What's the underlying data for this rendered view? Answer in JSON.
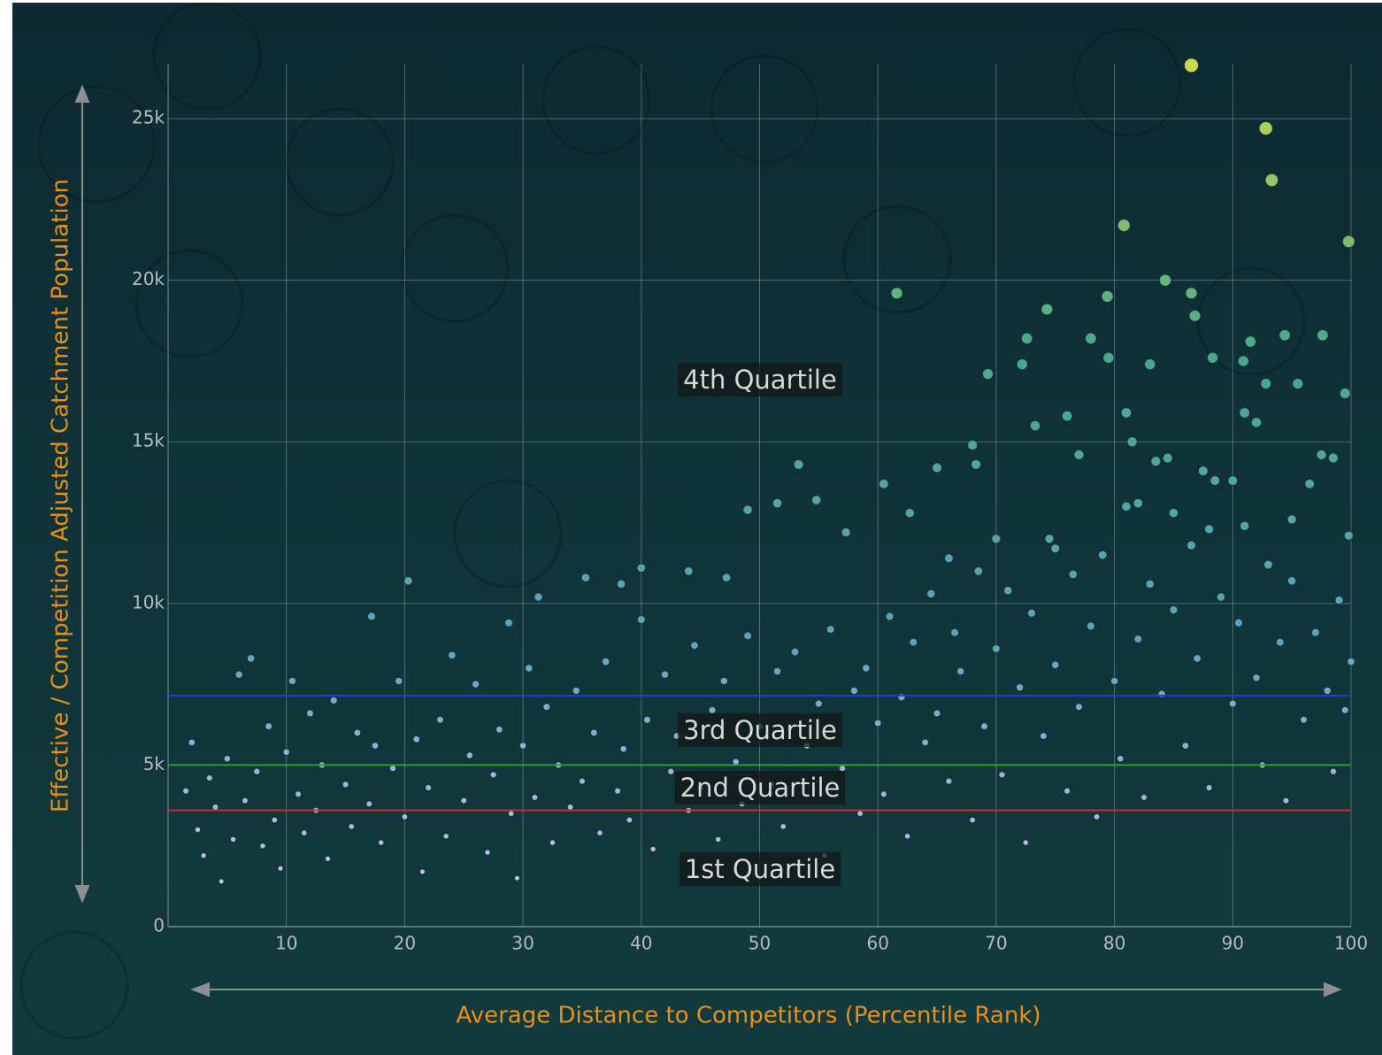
{
  "chart_data": {
    "type": "scatter",
    "x_label": "Average Distance to Competitors (Percentile Rank)",
    "y_label": "Effective / Competition Adjusted Catchment Population",
    "xlim": [
      0,
      100
    ],
    "ylim": [
      0,
      26700
    ],
    "xticks": [
      10,
      20,
      30,
      40,
      50,
      60,
      70,
      80,
      90,
      100
    ],
    "yticks": [
      0,
      {
        "value": 5000,
        "label": "5k"
      },
      {
        "value": 10000,
        "label": "10k"
      },
      {
        "value": 15000,
        "label": "15k"
      },
      {
        "value": 20000,
        "label": "20k"
      },
      {
        "value": 25000,
        "label": "25k"
      }
    ],
    "grid": true,
    "color_scale": [
      "#dccbf4",
      "#5ba4b9",
      "#46a98a",
      "#c8da48"
    ],
    "hlines": [
      {
        "value": 7150,
        "color": "#1f3fd0"
      },
      {
        "value": 5000,
        "color": "#2f9a2f"
      },
      {
        "value": 3600,
        "color": "#d02a2a"
      }
    ],
    "annotations": [
      "4th Quartile",
      "3rd Quartile",
      "2nd Quartile",
      "1st Quartile"
    ],
    "x": [
      86.5,
      92.8,
      93.3,
      80.8,
      99.8,
      61.6,
      84.3,
      86.5,
      86.8,
      74.3,
      79.4,
      72.6,
      78,
      91.5,
      94.4,
      97.6,
      69.3,
      72.2,
      79.5,
      83,
      88.3,
      90.9,
      92.8,
      95.5,
      99.5,
      76,
      81,
      91,
      92,
      73.3,
      53.3,
      65,
      68.3,
      49,
      51.5,
      54.8,
      60.5,
      62.7,
      47.2,
      40,
      35.3,
      31.3,
      20.3,
      17.2,
      28.8,
      44,
      38.3,
      66,
      57.3,
      70,
      75,
      82,
      85,
      88,
      95,
      99.8,
      1.5,
      2,
      2.5,
      3,
      3.5,
      4,
      4.5,
      5,
      5.5,
      6,
      6.5,
      7,
      7.5,
      8,
      8.5,
      9,
      9.5,
      10,
      10.5,
      11,
      11.5,
      12,
      12.5,
      13,
      13.5,
      14,
      15,
      15.5,
      16,
      17,
      17.5,
      18,
      19,
      19.5,
      20,
      21,
      21.5,
      22,
      23,
      23.5,
      24,
      25,
      25.5,
      26,
      27,
      27.5,
      28,
      29,
      29.5,
      30,
      30.5,
      31,
      32,
      32.5,
      33,
      34,
      34.5,
      35,
      36,
      36.5,
      37,
      38,
      38.5,
      39,
      40,
      40.5,
      41,
      42,
      42.5,
      43,
      44,
      44.5,
      45,
      46,
      46.5,
      47,
      48,
      48.5,
      49,
      50,
      51,
      51.5,
      52,
      53,
      54,
      55,
      55.5,
      56,
      57,
      58,
      58.5,
      59,
      60,
      60.5,
      61,
      62,
      62.5,
      63,
      64,
      64.5,
      65,
      66,
      66.5,
      67,
      68,
      68.5,
      69,
      70,
      70.5,
      71,
      72,
      72.5,
      73,
      74,
      74.5,
      75,
      76,
      76.5,
      77,
      78,
      78.5,
      79,
      80,
      80.5,
      81,
      82,
      82.5,
      83,
      84,
      84.5,
      85,
      86,
      86.5,
      87,
      88,
      88.5,
      89,
      90,
      90.5,
      91,
      92,
      92.5,
      93,
      94,
      94.5,
      95,
      96,
      96.5,
      97,
      98,
      98.5,
      99,
      99.5,
      100,
      68,
      77,
      81.5,
      83.5,
      87.5,
      90,
      97.5,
      98.5
    ],
    "values": [
      26650,
      24700,
      23100,
      21700,
      21200,
      19600,
      20000,
      19600,
      18900,
      19100,
      19500,
      18200,
      18200,
      18100,
      18300,
      18300,
      17100,
      17400,
      17600,
      17400,
      17600,
      17500,
      16800,
      16800,
      16500,
      15800,
      15900,
      15900,
      15600,
      15500,
      14300,
      14200,
      14300,
      12900,
      13100,
      13200,
      13700,
      12800,
      10800,
      11100,
      10800,
      10200,
      10700,
      9600,
      9400,
      11000,
      10600,
      11400,
      12200,
      12000,
      11700,
      13100,
      12800,
      12300,
      12600,
      12100,
      4200,
      5700,
      3000,
      2200,
      4600,
      3700,
      1400,
      5200,
      2700,
      7800,
      3900,
      8300,
      4800,
      2500,
      6200,
      3300,
      1800,
      5400,
      7600,
      4100,
      2900,
      6600,
      3600,
      5000,
      2100,
      7000,
      4400,
      3100,
      6000,
      3800,
      5600,
      2600,
      4900,
      7600,
      3400,
      5800,
      1700,
      4300,
      6400,
      2800,
      8400,
      3900,
      5300,
      7500,
      2300,
      4700,
      6100,
      3500,
      1500,
      5600,
      8000,
      4000,
      6800,
      2600,
      5000,
      3700,
      7300,
      4500,
      6000,
      2900,
      8200,
      4200,
      5500,
      3300,
      9500,
      6400,
      2400,
      7800,
      4800,
      5900,
      3600,
      8700,
      4300,
      6700,
      2700,
      7600,
      5100,
      3800,
      9000,
      6200,
      4400,
      7900,
      3100,
      8500,
      5600,
      6900,
      2200,
      9200,
      4900,
      7300,
      3500,
      8000,
      6300,
      4100,
      9600,
      7100,
      2800,
      8800,
      5700,
      10300,
      6600,
      4500,
      9100,
      7900,
      3300,
      11000,
      6200,
      8600,
      4700,
      10400,
      7400,
      2600,
      9700,
      5900,
      12000,
      8100,
      4200,
      10900,
      6800,
      9300,
      3400,
      11500,
      7600,
      5200,
      13000,
      8900,
      4000,
      10600,
      7200,
      14500,
      9800,
      5600,
      11800,
      8300,
      4300,
      13800,
      10200,
      6900,
      9400,
      12400,
      7700,
      5000,
      11200,
      8800,
      3900,
      10700,
      6400,
      13700,
      9100,
      7300,
      4800,
      10100,
      6700,
      8200,
      14900,
      14600,
      15000,
      14400,
      14100,
      13800,
      14600,
      14500
    ]
  }
}
